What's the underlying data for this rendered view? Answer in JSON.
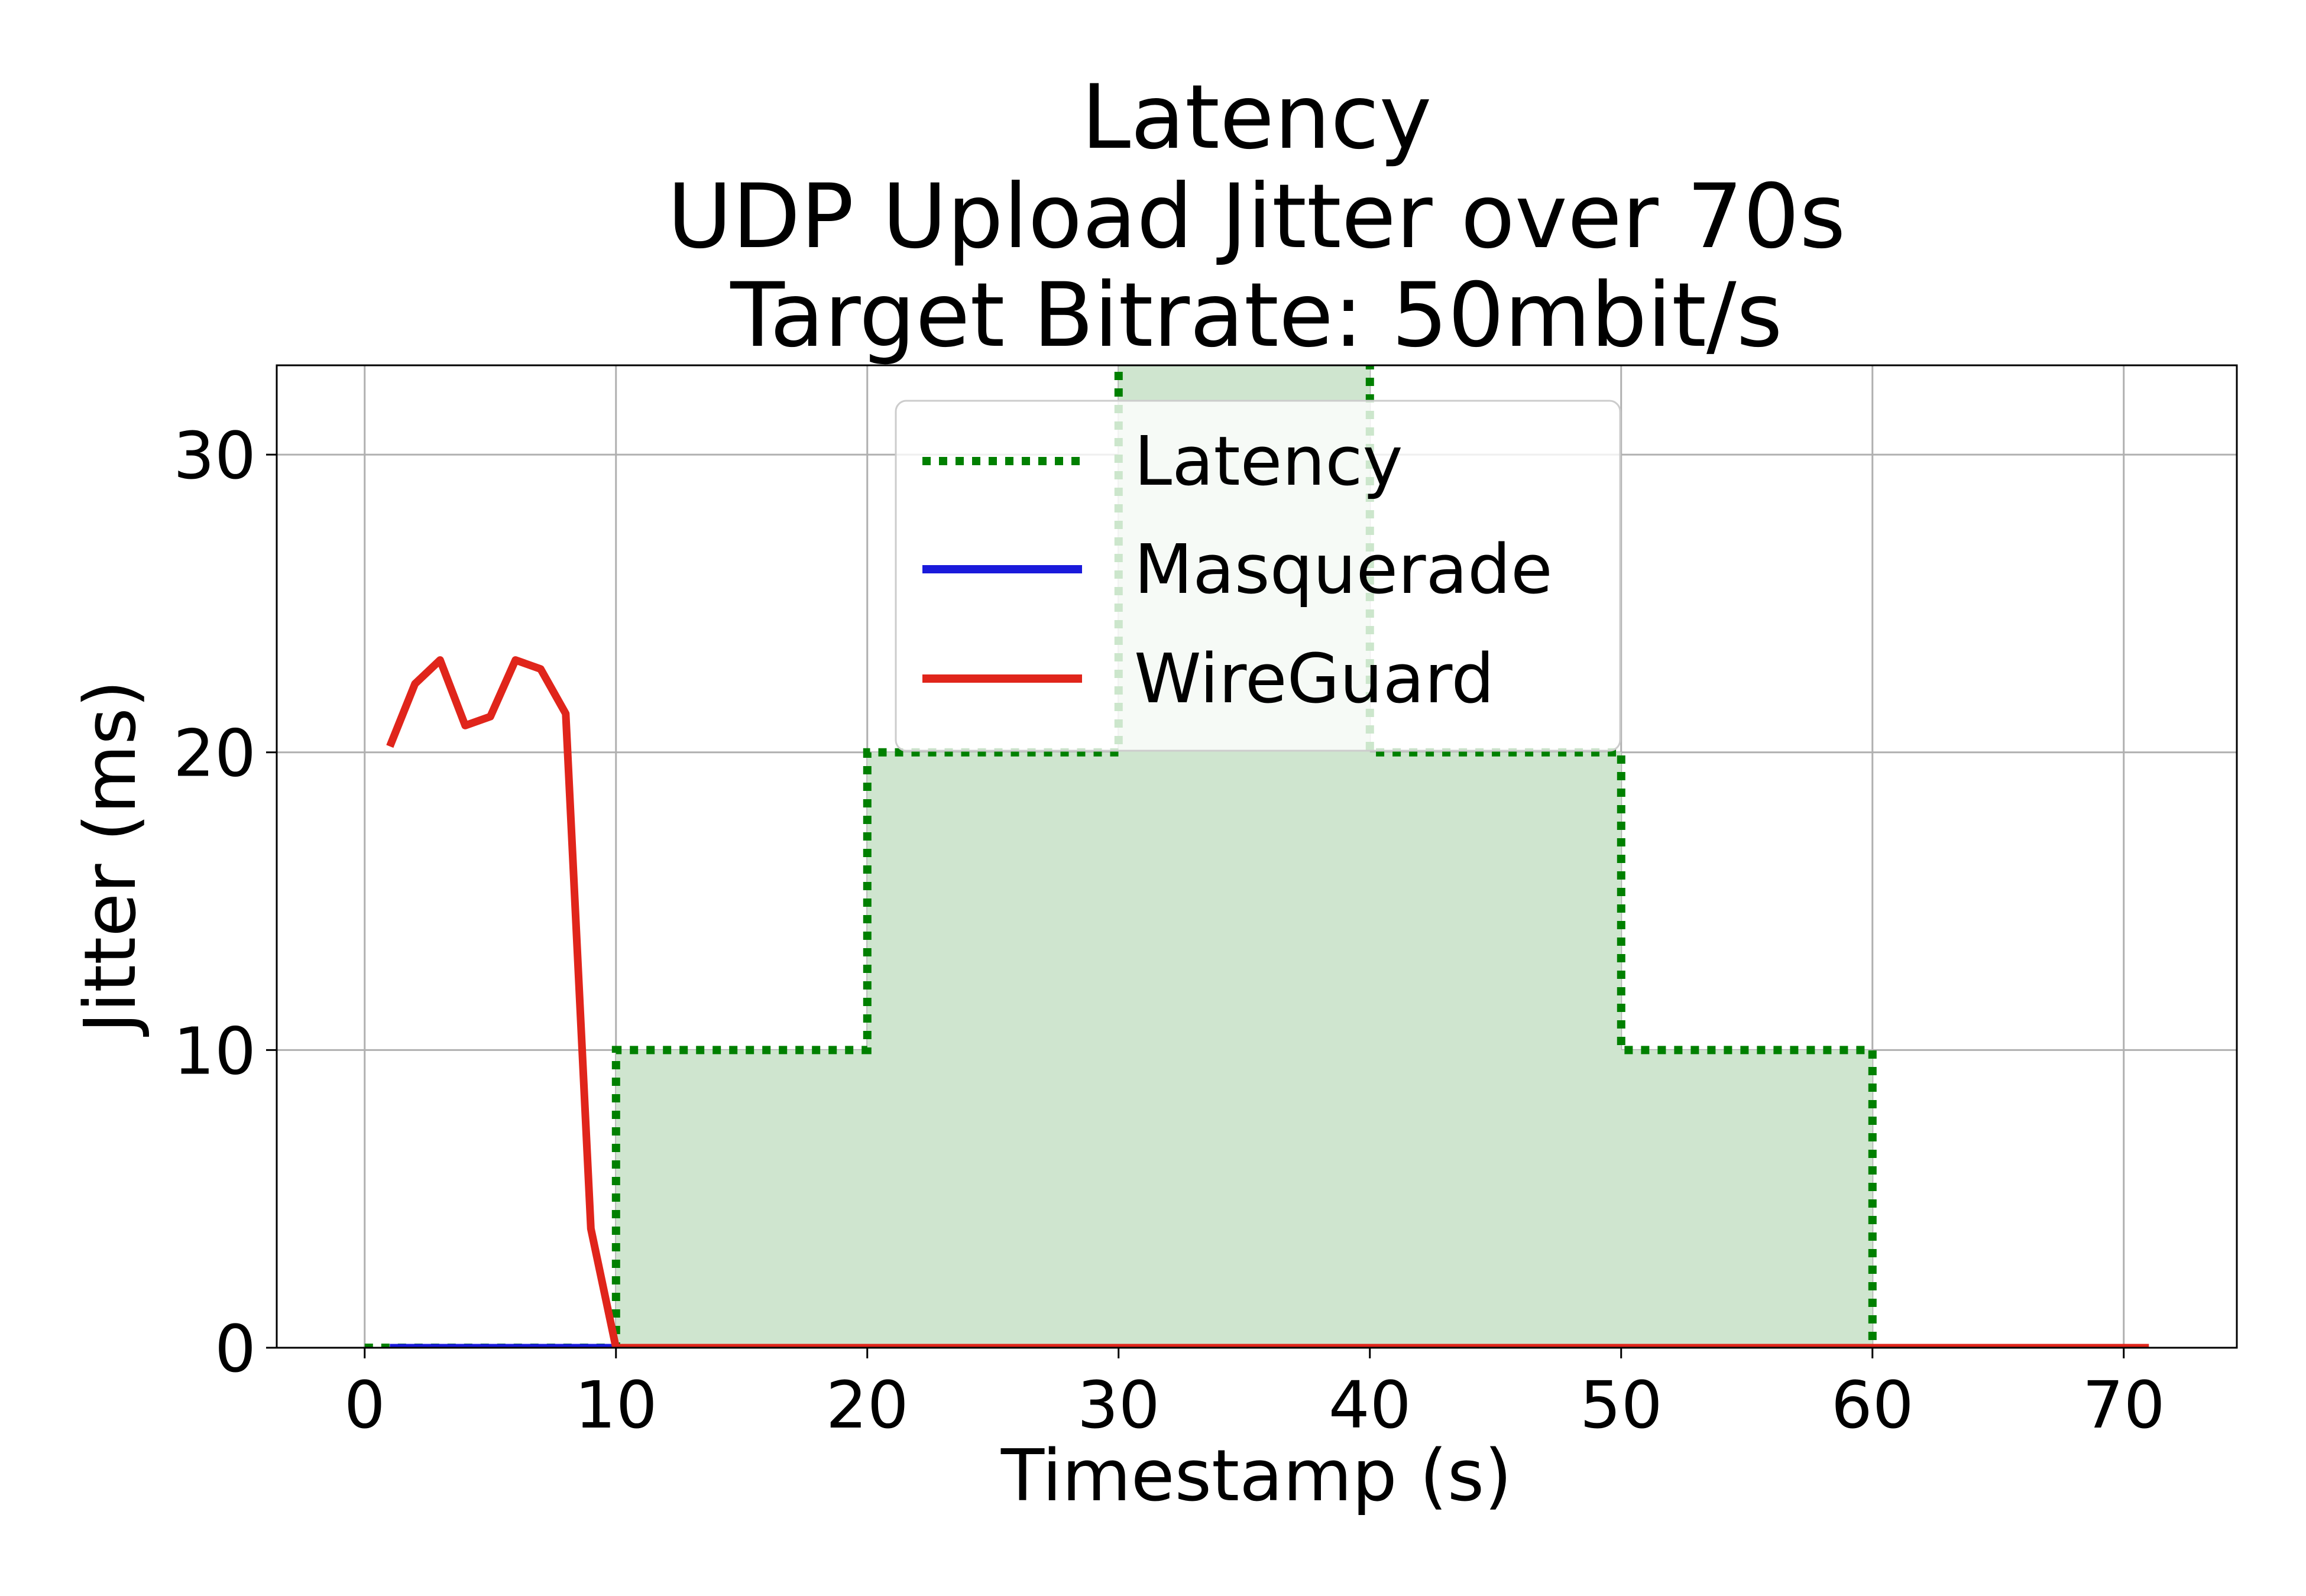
{
  "chart_data": {
    "type": "line",
    "title": [
      "Latency",
      "UDP Upload Jitter over 70s",
      "Target Bitrate: 50mbit/s"
    ],
    "xlabel": "Timestamp (s)",
    "ylabel": "Jitter (ms)",
    "xlim": [
      -3.5,
      74.5
    ],
    "ylim": [
      0,
      33
    ],
    "xticks": [
      0,
      10,
      20,
      30,
      40,
      50,
      60,
      70
    ],
    "yticks": [
      0,
      10,
      20,
      30
    ],
    "grid": true,
    "legend_position": "upper-center",
    "series": [
      {
        "name": "Latency",
        "style": "dotted",
        "color": "#008000",
        "fill": "#cfe5cf",
        "step": true,
        "x": [
          0,
          10,
          10,
          20,
          20,
          30,
          30,
          40,
          40,
          50,
          50,
          60,
          60
        ],
        "y": [
          0,
          0,
          10,
          10,
          20,
          20,
          40,
          40,
          20,
          20,
          10,
          10,
          0
        ]
      },
      {
        "name": "Masquerade",
        "style": "solid",
        "color": "#1a1adb",
        "x": [
          1,
          2,
          3,
          4,
          5,
          6,
          7,
          8,
          9,
          10
        ],
        "y": [
          0,
          0,
          0,
          0,
          0,
          0,
          0,
          0,
          0,
          0
        ]
      },
      {
        "name": "WireGuard",
        "style": "solid",
        "color": "#e0251b",
        "x": [
          1,
          2,
          3,
          4,
          5,
          6,
          7,
          8,
          9,
          10,
          11,
          20,
          30,
          40,
          50,
          60,
          71
        ],
        "y": [
          20.2,
          22.3,
          23.1,
          20.9,
          21.2,
          23.1,
          22.8,
          21.3,
          4,
          0,
          0,
          0,
          0,
          0,
          0,
          0,
          0
        ]
      }
    ]
  }
}
